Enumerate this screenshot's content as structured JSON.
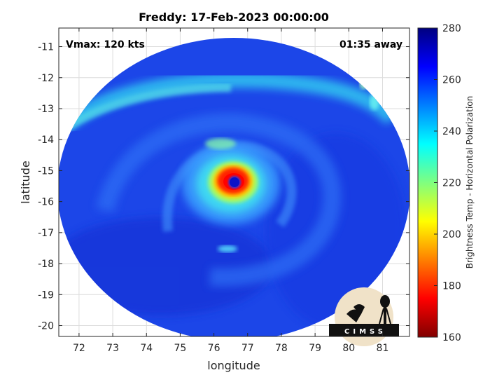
{
  "chart_data": {
    "type": "heatmap",
    "title": "Freddy: 17-Feb-2023 00:00:00",
    "xlabel": "longitude",
    "ylabel": "latitude",
    "xlim": [
      71.4,
      81.8
    ],
    "ylim": [
      -20.35,
      -10.4
    ],
    "xticks": [
      72,
      73,
      74,
      75,
      76,
      77,
      78,
      79,
      80,
      81
    ],
    "yticks": [
      -11,
      -12,
      -13,
      -14,
      -15,
      -16,
      -17,
      -18,
      -19,
      -20
    ],
    "grid": true,
    "annotations": {
      "vmax": "Vmax: 120 kts",
      "time_offset": "01:35 away"
    },
    "colorbar": {
      "label": "Brightness Temp - Horizontal Polarization",
      "min": 160,
      "max": 280,
      "ticks": [
        160,
        180,
        200,
        220,
        240,
        260,
        280
      ],
      "colormap": "jet"
    },
    "storm_center": {
      "lon": 76.55,
      "lat": -15.35
    },
    "eye_temp": 255,
    "eyewall_temp": 190,
    "background_temp": 262
  },
  "logo": {
    "text": "CIMSS"
  }
}
